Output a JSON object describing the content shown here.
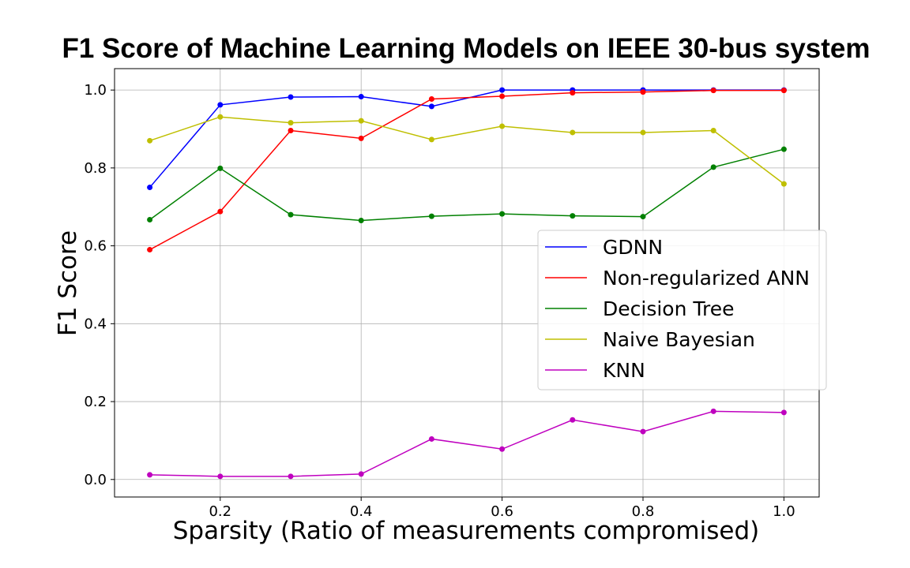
{
  "chart_data": {
    "type": "line",
    "title": "F1 Score of Machine Learning Models on IEEE 30-bus system",
    "xlabel": "Sparsity (Ratio of measurements compromised)",
    "ylabel": "F1 Score",
    "xlim": [
      0.05,
      1.05
    ],
    "ylim": [
      -0.045,
      1.055
    ],
    "xticks": [
      0.2,
      0.4,
      0.6,
      0.8,
      1.0
    ],
    "xtick_labels": [
      "0.2",
      "0.4",
      "0.6",
      "0.8",
      "1.0"
    ],
    "yticks": [
      0.0,
      0.2,
      0.4,
      0.6,
      0.8,
      1.0
    ],
    "ytick_labels": [
      "0.0",
      "0.2",
      "0.4",
      "0.6",
      "0.8",
      "1.0"
    ],
    "grid": true,
    "legend_position": "center-right",
    "x": [
      0.1,
      0.2,
      0.3,
      0.4,
      0.5,
      0.6,
      0.7,
      0.8,
      0.9,
      1.0
    ],
    "series": [
      {
        "name": "GDNN",
        "color": "#0000ff",
        "values": [
          0.75,
          0.962,
          0.982,
          0.983,
          0.958,
          1.0,
          1.0,
          1.0,
          1.0,
          1.0
        ]
      },
      {
        "name": "Non-regularized ANN",
        "color": "#ff0000",
        "values": [
          0.59,
          0.688,
          0.896,
          0.876,
          0.977,
          0.984,
          0.993,
          0.995,
          0.999,
          0.999
        ]
      },
      {
        "name": "Decision Tree",
        "color": "#008000",
        "values": [
          0.667,
          0.799,
          0.68,
          0.665,
          0.676,
          0.682,
          0.677,
          0.675,
          0.802,
          0.848
        ]
      },
      {
        "name": "Naive Bayesian",
        "color": "#bfbf00",
        "values": [
          0.87,
          0.931,
          0.916,
          0.921,
          0.873,
          0.907,
          0.891,
          0.891,
          0.896,
          0.759
        ]
      },
      {
        "name": "KNN",
        "color": "#bf00bf",
        "values": [
          0.012,
          0.008,
          0.008,
          0.014,
          0.104,
          0.078,
          0.153,
          0.123,
          0.175,
          0.172
        ]
      }
    ]
  }
}
